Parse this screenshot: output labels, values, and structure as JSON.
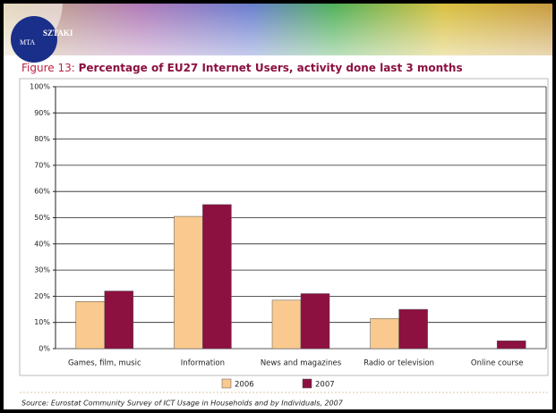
{
  "header": {
    "logo": [
      "MTA",
      "SZTAKI"
    ]
  },
  "chart_data": {
    "type": "bar",
    "figure_label": "Figure 13:",
    "title": "Percentage of EU27 Internet Users, activity done last 3 months",
    "categories": [
      "Games, film, music",
      "Information",
      "News and magazines",
      "Radio or television",
      "Online course"
    ],
    "series": [
      {
        "name": "2006",
        "color": "#f9c98f",
        "values": [
          18,
          50.5,
          18.5,
          11.5,
          null
        ]
      },
      {
        "name": "2007",
        "color": "#8c1040",
        "values": [
          22,
          55,
          21,
          15,
          3
        ]
      }
    ],
    "ylim": [
      0,
      100
    ],
    "yticks": [
      {
        "value": 0,
        "label": "0%"
      },
      {
        "value": 10,
        "label": "10%"
      },
      {
        "value": 20,
        "label": "20%"
      },
      {
        "value": 30,
        "label": "30%"
      },
      {
        "value": 40,
        "label": "40%"
      },
      {
        "value": 50,
        "label": "50%"
      },
      {
        "value": 60,
        "label": "60%"
      },
      {
        "value": 70,
        "label": "70%"
      },
      {
        "value": 80,
        "label": "80%"
      },
      {
        "value": 90,
        "label": "90%"
      },
      {
        "value": 100,
        "label": "100%"
      }
    ],
    "grid": true,
    "source": "Source: Eurostat Community Survey of ICT Usage in Households and by Individuals, 2007"
  }
}
